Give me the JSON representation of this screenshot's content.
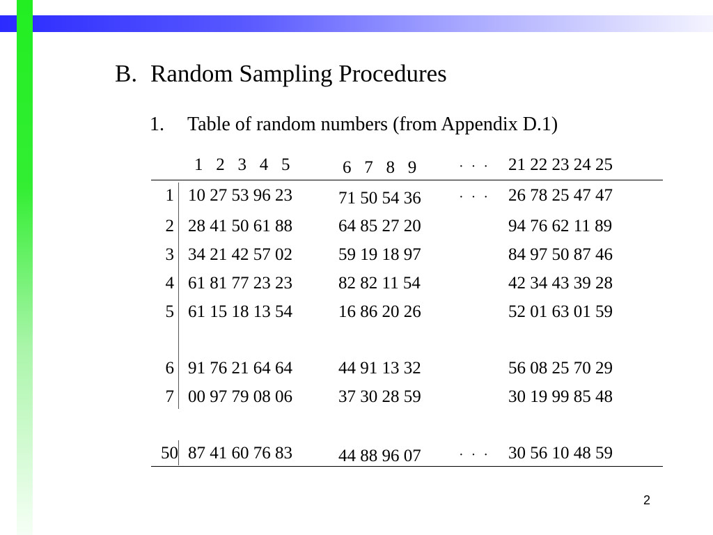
{
  "heading": {
    "number": "B.",
    "text": "Random Sampling Procedures"
  },
  "subheading": {
    "number": "1.",
    "text": "Table of random numbers (from Appendix D.1)"
  },
  "table": {
    "columns": [
      "1   2   3   4   5",
      "6   7   8   9",
      "· · ·",
      "21 22 23 24 25"
    ],
    "rows": [
      {
        "label": "1",
        "values": [
          "10 27 53 96 23",
          "71 50 54 36",
          "· · ·",
          "26 78 25 47 47"
        ]
      },
      {
        "label": "2",
        "values": [
          "28 41 50 61 88",
          "64 85 27 20",
          "",
          "94 76 62 11 89"
        ]
      },
      {
        "label": "3",
        "values": [
          "34 21 42 57 02",
          "59 19 18 97",
          "",
          "84 97 50 87 46"
        ]
      },
      {
        "label": "4",
        "values": [
          "61 81 77 23 23",
          "82 82 11 54",
          "",
          "42 34 43 39 28"
        ]
      },
      {
        "label": "5",
        "values": [
          "61 15 18 13 54",
          "16 86 20 26",
          "",
          "52 01 63 01 59"
        ]
      },
      {
        "label": "6",
        "values": [
          "91 76 21 64 64",
          "44 91 13 32",
          "",
          "56 08 25 70 29"
        ]
      },
      {
        "label": "7",
        "values": [
          "00 97 79 08 06",
          "37 30 28 59",
          "",
          "30 19 99 85 48"
        ]
      },
      {
        "label": "50",
        "values": [
          "87 41 60 76 83",
          "44 88 96 07",
          "· · ·",
          "30 56 10 48 59"
        ]
      }
    ]
  },
  "page_number": "2"
}
